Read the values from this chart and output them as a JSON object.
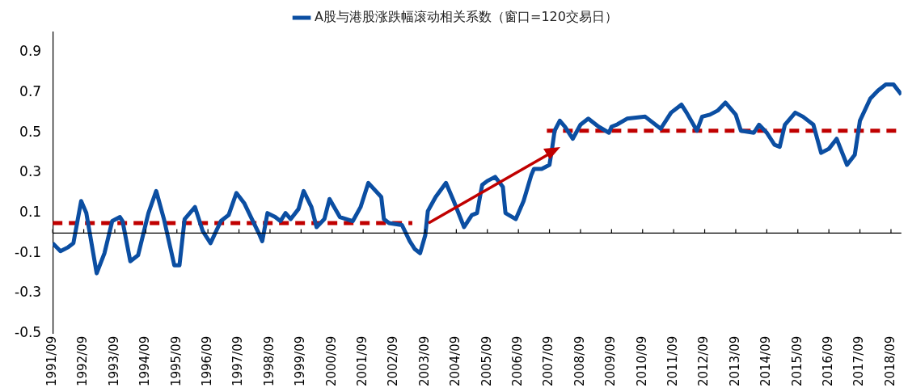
{
  "chart_data": {
    "type": "line",
    "legend": "top",
    "marker": "none",
    "grid": false,
    "xlim": [
      "1991-09",
      "2019-01"
    ],
    "xticks": [
      {
        "value": "1991-09",
        "label": "1991/09"
      },
      {
        "value": "1992-09",
        "label": "1992/09"
      },
      {
        "value": "1993-09",
        "label": "1993/09"
      },
      {
        "value": "1994-09",
        "label": "1994/09"
      },
      {
        "value": "1995-09",
        "label": "1995/09"
      },
      {
        "value": "1996-09",
        "label": "1996/09"
      },
      {
        "value": "1997-09",
        "label": "1997/09"
      },
      {
        "value": "1998-09",
        "label": "1998/09"
      },
      {
        "value": "1999-09",
        "label": "1999/09"
      },
      {
        "value": "2000-09",
        "label": "2000/09"
      },
      {
        "value": "2001-09",
        "label": "2001/09"
      },
      {
        "value": "2002-09",
        "label": "2002/09"
      },
      {
        "value": "2003-09",
        "label": "2003/09"
      },
      {
        "value": "2004-09",
        "label": "2004/09"
      },
      {
        "value": "2005-09",
        "label": "2005/09"
      },
      {
        "value": "2006-09",
        "label": "2006/09"
      },
      {
        "value": "2007-09",
        "label": "2007/09"
      },
      {
        "value": "2008-09",
        "label": "2008/09"
      },
      {
        "value": "2009-09",
        "label": "2009/09"
      },
      {
        "value": "2010-09",
        "label": "2010/09"
      },
      {
        "value": "2011-09",
        "label": "2011/09"
      },
      {
        "value": "2012-09",
        "label": "2012/09"
      },
      {
        "value": "2013-09",
        "label": "2013/09"
      },
      {
        "value": "2014-09",
        "label": "2014/09"
      },
      {
        "value": "2015-09",
        "label": "2015/09"
      },
      {
        "value": "2016-09",
        "label": "2016/09"
      },
      {
        "value": "2017-09",
        "label": "2017/09"
      },
      {
        "value": "2018-09",
        "label": "2018/09"
      }
    ],
    "ylim": [
      -0.5,
      1.0
    ],
    "yticks": [
      -0.5,
      -0.3,
      -0.1,
      0.1,
      0.3,
      0.5,
      0.7,
      0.9
    ],
    "series": [
      {
        "name": "A股与港股涨跌幅滚动相关系数（窗口=120交易日）",
        "color": "#0b4ea2",
        "line_style": "solid",
        "x": [
          "1991-09",
          "1991-12",
          "1992-03",
          "1992-05",
          "1992-08",
          "1992-10",
          "1993-02",
          "1993-05",
          "1993-08",
          "1993-11",
          "1993-12",
          "1994-03",
          "1994-06",
          "1994-10",
          "1995-01",
          "1995-04",
          "1995-08",
          "1995-10",
          "1995-12",
          "1996-04",
          "1996-07",
          "1996-10",
          "1997-02",
          "1997-05",
          "1997-08",
          "1997-11",
          "1998-02",
          "1998-05",
          "1998-06",
          "1998-08",
          "1998-11",
          "1999-01",
          "1999-03",
          "1999-05",
          "1999-08",
          "1999-10",
          "2000-01",
          "2000-03",
          "2000-06",
          "2000-08",
          "2000-12",
          "2001-05",
          "2001-08",
          "2001-11",
          "2002-04",
          "2002-05",
          "2002-07",
          "2002-12",
          "2003-03",
          "2003-05",
          "2003-07",
          "2003-09",
          "2003-10",
          "2004-01",
          "2004-05",
          "2004-08",
          "2004-12",
          "2005-03",
          "2005-05",
          "2005-07",
          "2005-09",
          "2005-12",
          "2006-03",
          "2006-04",
          "2006-08",
          "2006-11",
          "2007-02",
          "2007-03",
          "2007-06",
          "2007-09",
          "2007-10",
          "2007-11",
          "2008-01",
          "2008-03",
          "2008-06",
          "2008-09",
          "2008-12",
          "2009-04",
          "2009-08",
          "2009-09",
          "2009-11",
          "2010-03",
          "2010-10",
          "2011-04",
          "2011-08",
          "2011-12",
          "2012-02",
          "2012-06",
          "2012-08",
          "2012-11",
          "2013-02",
          "2013-05",
          "2013-09",
          "2013-11",
          "2014-04",
          "2014-06",
          "2014-09",
          "2014-12",
          "2015-02",
          "2015-04",
          "2015-08",
          "2015-11",
          "2016-03",
          "2016-06",
          "2016-09",
          "2016-12",
          "2017-04",
          "2017-07",
          "2017-09",
          "2018-01",
          "2018-04",
          "2018-07",
          "2018-10",
          "2019-01"
        ],
        "values": [
          -0.05,
          -0.09,
          -0.07,
          -0.05,
          0.16,
          0.1,
          -0.2,
          -0.1,
          0.06,
          0.08,
          0.06,
          -0.14,
          -0.11,
          0.1,
          0.21,
          0.07,
          -0.16,
          -0.16,
          0.07,
          0.13,
          0.01,
          -0.05,
          0.06,
          0.09,
          0.2,
          0.15,
          0.07,
          -0.01,
          -0.04,
          0.1,
          0.08,
          0.06,
          0.1,
          0.07,
          0.12,
          0.21,
          0.13,
          0.03,
          0.07,
          0.17,
          0.08,
          0.06,
          0.13,
          0.25,
          0.18,
          0.07,
          0.05,
          0.04,
          -0.04,
          -0.08,
          -0.1,
          -0.01,
          0.11,
          0.18,
          0.25,
          0.16,
          0.03,
          0.09,
          0.1,
          0.24,
          0.26,
          0.28,
          0.23,
          0.1,
          0.07,
          0.16,
          0.29,
          0.32,
          0.32,
          0.34,
          0.42,
          0.51,
          0.56,
          0.53,
          0.47,
          0.54,
          0.57,
          0.53,
          0.5,
          0.53,
          0.54,
          0.57,
          0.58,
          0.52,
          0.6,
          0.64,
          0.6,
          0.51,
          0.58,
          0.59,
          0.61,
          0.65,
          0.59,
          0.51,
          0.5,
          0.54,
          0.5,
          0.44,
          0.43,
          0.54,
          0.6,
          0.58,
          0.54,
          0.4,
          0.42,
          0.47,
          0.34,
          0.39,
          0.56,
          0.67,
          0.71,
          0.74,
          0.74,
          0.69
        ]
      },
      {
        "color": "#c00000",
        "line_style": "dashed",
        "x": [
          "1991-09",
          "2003-04"
        ],
        "values": [
          0.05,
          0.05
        ]
      },
      {
        "color": "#c00000",
        "line_style": "dashed",
        "x": [
          "2007-08",
          "2019-01"
        ],
        "values": [
          0.51,
          0.51
        ]
      }
    ]
  }
}
